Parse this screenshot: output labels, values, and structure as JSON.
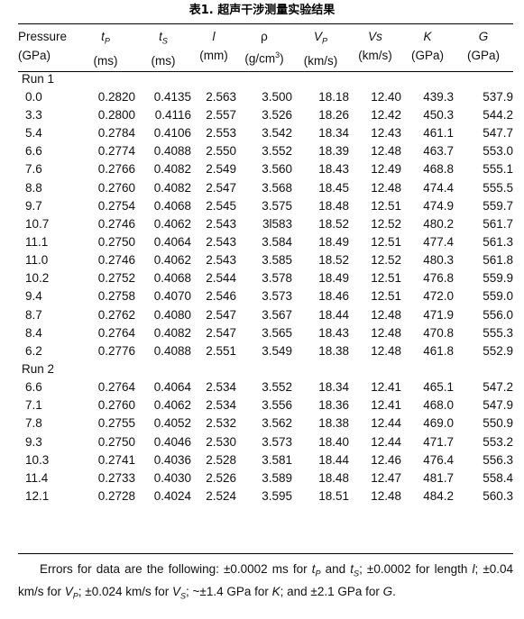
{
  "caption": "表1. 超声干涉测量实验结果",
  "headers": {
    "pressure": {
      "name": "Pressure",
      "unit": "(GPa)"
    },
    "tp": {
      "sym": "t",
      "sub": "P",
      "unit": "(ms)"
    },
    "ts": {
      "sym": "t",
      "sub": "S",
      "unit": "(ms)"
    },
    "l": {
      "sym": "l",
      "unit": "(mm)"
    },
    "rho": {
      "sym": "ρ",
      "unit_pre": "(g/cm",
      "unit_sup": "3",
      "unit_post": ")"
    },
    "vp": {
      "sym": "V",
      "sub": "P",
      "unit": "(km/s)"
    },
    "vs": {
      "sym": "Vs",
      "unit": "(km/s)"
    },
    "k": {
      "sym": "K",
      "unit": "(GPa)"
    },
    "g": {
      "sym": "G",
      "unit": "(GPa)"
    }
  },
  "runs": [
    {
      "label": "Run 1",
      "rows": [
        [
          "0.0",
          "0.2820",
          "0.4135",
          "2.563",
          "3.500",
          "18.18",
          "12.40",
          "439.3",
          "537.9"
        ],
        [
          "3.3",
          "0.2800",
          "0.4116",
          "2.557",
          "3.526",
          "18.26",
          "12.42",
          "450.3",
          "544.2"
        ],
        [
          "5.4",
          "0.2784",
          "0.4106",
          "2.553",
          "3.542",
          "18.34",
          "12.43",
          "461.1",
          "547.7"
        ],
        [
          "6.6",
          "0.2774",
          "0.4088",
          "2.550",
          "3.552",
          "18.39",
          "12.48",
          "463.7",
          "553.0"
        ],
        [
          "7.6",
          "0.2766",
          "0.4082",
          "2.549",
          "3.560",
          "18.43",
          "12.49",
          "468.8",
          "555.1"
        ],
        [
          "8.8",
          "0.2760",
          "0.4082",
          "2.547",
          "3.568",
          "18.45",
          "12.48",
          "474.4",
          "555.5"
        ],
        [
          "9.7",
          "0.2754",
          "0.4068",
          "2.545",
          "3.575",
          "18.48",
          "12.51",
          "474.9",
          "559.7"
        ],
        [
          "10.7",
          "0.2746",
          "0.4062",
          "2.543",
          "3l583",
          "18.52",
          "12.52",
          "480.2",
          "561.7"
        ],
        [
          "11.1",
          "0.2750",
          "0.4064",
          "2.543",
          "3.584",
          "18.49",
          "12.51",
          "477.4",
          "561.3"
        ],
        [
          "11.0",
          "0.2746",
          "0.4062",
          "2.543",
          "3.585",
          "18.52",
          "12.52",
          "480.3",
          "561.8"
        ],
        [
          "10.2",
          "0.2752",
          "0.4068",
          "2.544",
          "3.578",
          "18.49",
          "12.51",
          "476.8",
          "559.9"
        ],
        [
          "9.4",
          "0.2758",
          "0.4070",
          "2.546",
          "3.573",
          "18.46",
          "12.51",
          "472.0",
          "559.0"
        ],
        [
          "8.7",
          "0.2762",
          "0.4080",
          "2.547",
          "3.567",
          "18.44",
          "12.48",
          "471.9",
          "556.0"
        ],
        [
          "8.4",
          "0.2764",
          "0.4082",
          "2.547",
          "3.565",
          "18.43",
          "12.48",
          "470.8",
          "555.3"
        ],
        [
          "6.2",
          "0.2776",
          "0.4088",
          "2.551",
          "3.549",
          "18.38",
          "12.48",
          "461.8",
          "552.9"
        ]
      ]
    },
    {
      "label": "Run 2",
      "rows": [
        [
          "6.6",
          "0.2764",
          "0.4064",
          "2.534",
          "3.552",
          "18.34",
          "12.41",
          "465.1",
          "547.2"
        ],
        [
          "7.1",
          "0.2760",
          "0.4062",
          "2.534",
          "3.556",
          "18.36",
          "12.41",
          "468.0",
          "547.9"
        ],
        [
          "7.8",
          "0.2755",
          "0.4052",
          "2.532",
          "3.562",
          "18.38",
          "12.44",
          "469.0",
          "550.9"
        ],
        [
          "9.3",
          "0.2750",
          "0.4046",
          "2.530",
          "3.573",
          "18.40",
          "12.44",
          "471.7",
          "553.2"
        ],
        [
          "10.3",
          "0.2741",
          "0.4036",
          "2.528",
          "3.581",
          "18.44",
          "12.46",
          "476.4",
          "556.3"
        ],
        [
          "11.4",
          "0.2733",
          "0.4030",
          "2.526",
          "3.589",
          "18.48",
          "12.47",
          "481.7",
          "558.4"
        ],
        [
          "12.1",
          "0.2728",
          "0.4024",
          "2.524",
          "3.595",
          "18.51",
          "12.48",
          "484.2",
          "560.3"
        ]
      ]
    }
  ],
  "note": {
    "t1": "Errors for data are the following: ±0.0002 ms for ",
    "tp_sym": "t",
    "tp_sub": "P",
    "t2": " and ",
    "ts_sym": "t",
    "ts_sub": "S",
    "t3": "; ±0.0002 for length ",
    "l_sym": "l",
    "t4": "; ±0.04 km/s for ",
    "vp_sym": "V",
    "vp_sub": "P",
    "t5": "; ±0.024 km/s for ",
    "vs_sym": "V",
    "vs_sub": "S",
    "t6": "; ~±1.4 GPa for ",
    "k_sym": "K",
    "t7": "; and ±2.1 GPa for ",
    "g_sym": "G",
    "t8": "."
  }
}
